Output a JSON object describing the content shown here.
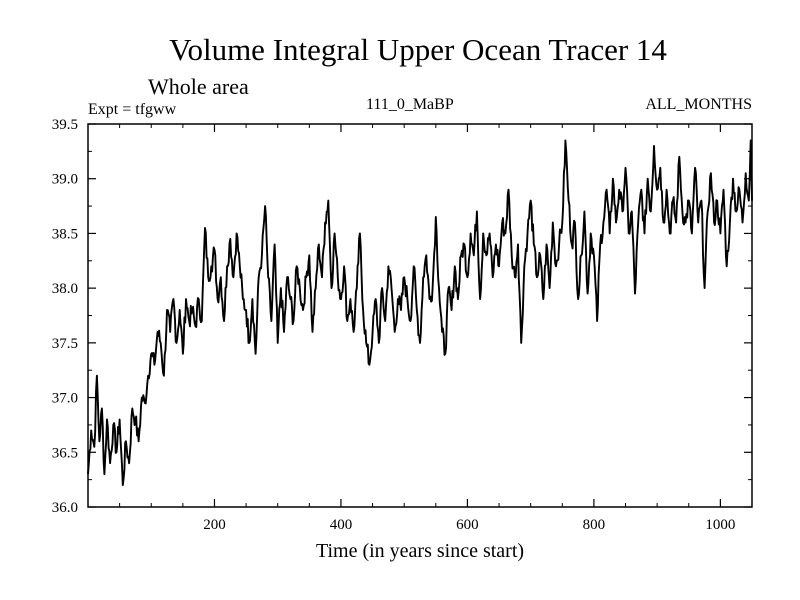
{
  "chart_data": {
    "type": "line",
    "title": "Volume Integral Upper Ocean Tracer 14",
    "subtitle": "Whole area",
    "expt_label": "Expt = tfgww",
    "run_label": "111_0_MaBP",
    "period_label": "ALL_MONTHS",
    "xlabel": "Time (in years since start)",
    "ylabel": "",
    "xlim": [
      0,
      1050
    ],
    "ylim": [
      36.0,
      39.5
    ],
    "xticks": [
      200,
      400,
      600,
      800,
      1000
    ],
    "xtick_labels": [
      "200",
      "400",
      "600",
      "800",
      "1000"
    ],
    "yticks": [
      36.0,
      36.5,
      37.0,
      37.5,
      38.0,
      38.5,
      39.0,
      39.5
    ],
    "ytick_labels": [
      "36.0",
      "36.5",
      "37.0",
      "37.5",
      "38.0",
      "38.5",
      "39.0",
      "39.5"
    ],
    "grid": false,
    "line_color": "#000000",
    "anchors": [
      [
        0,
        36.3
      ],
      [
        5,
        36.7
      ],
      [
        10,
        36.55
      ],
      [
        14,
        37.2
      ],
      [
        18,
        36.6
      ],
      [
        22,
        36.9
      ],
      [
        26,
        36.3
      ],
      [
        30,
        36.8
      ],
      [
        35,
        36.4
      ],
      [
        40,
        36.75
      ],
      [
        45,
        36.5
      ],
      [
        50,
        36.8
      ],
      [
        55,
        36.2
      ],
      [
        60,
        36.6
      ],
      [
        65,
        36.4
      ],
      [
        70,
        36.9
      ],
      [
        75,
        36.8
      ],
      [
        80,
        36.6
      ],
      [
        85,
        37.0
      ],
      [
        90,
        36.95
      ],
      [
        95,
        37.2
      ],
      [
        100,
        37.4
      ],
      [
        105,
        37.3
      ],
      [
        110,
        37.6
      ],
      [
        115,
        37.5
      ],
      [
        120,
        37.2
      ],
      [
        125,
        37.8
      ],
      [
        130,
        37.6
      ],
      [
        135,
        37.9
      ],
      [
        140,
        37.5
      ],
      [
        145,
        37.8
      ],
      [
        150,
        37.4
      ],
      [
        155,
        37.9
      ],
      [
        160,
        37.7
      ],
      [
        165,
        37.8
      ],
      [
        170,
        37.65
      ],
      [
        175,
        37.9
      ],
      [
        180,
        37.7
      ],
      [
        185,
        38.55
      ],
      [
        190,
        38.1
      ],
      [
        195,
        38.2
      ],
      [
        200,
        38.35
      ],
      [
        205,
        37.9
      ],
      [
        210,
        38.1
      ],
      [
        215,
        37.7
      ],
      [
        220,
        38.2
      ],
      [
        225,
        38.45
      ],
      [
        230,
        38.1
      ],
      [
        235,
        38.5
      ],
      [
        240,
        38.2
      ],
      [
        245,
        37.9
      ],
      [
        250,
        37.8
      ],
      [
        255,
        37.5
      ],
      [
        260,
        37.9
      ],
      [
        265,
        37.4
      ],
      [
        270,
        38.1
      ],
      [
        275,
        38.3
      ],
      [
        280,
        38.75
      ],
      [
        285,
        38.1
      ],
      [
        290,
        37.7
      ],
      [
        295,
        38.4
      ],
      [
        300,
        37.5
      ],
      [
        305,
        38.0
      ],
      [
        310,
        37.6
      ],
      [
        315,
        38.1
      ],
      [
        320,
        37.9
      ],
      [
        325,
        37.7
      ],
      [
        330,
        38.2
      ],
      [
        335,
        38.0
      ],
      [
        340,
        37.8
      ],
      [
        345,
        38.1
      ],
      [
        350,
        38.3
      ],
      [
        355,
        37.6
      ],
      [
        360,
        38.0
      ],
      [
        365,
        38.4
      ],
      [
        370,
        38.1
      ],
      [
        375,
        38.6
      ],
      [
        380,
        38.8
      ],
      [
        385,
        38.0
      ],
      [
        390,
        38.5
      ],
      [
        395,
        38.1
      ],
      [
        400,
        37.9
      ],
      [
        405,
        38.2
      ],
      [
        410,
        37.7
      ],
      [
        415,
        37.9
      ],
      [
        420,
        37.6
      ],
      [
        425,
        38.0
      ],
      [
        430,
        38.5
      ],
      [
        435,
        37.8
      ],
      [
        440,
        37.5
      ],
      [
        445,
        37.3
      ],
      [
        450,
        37.6
      ],
      [
        455,
        37.9
      ],
      [
        460,
        37.5
      ],
      [
        465,
        38.0
      ],
      [
        470,
        37.7
      ],
      [
        475,
        38.2
      ],
      [
        480,
        38.0
      ],
      [
        485,
        37.6
      ],
      [
        490,
        37.9
      ],
      [
        495,
        37.8
      ],
      [
        500,
        38.1
      ],
      [
        505,
        37.9
      ],
      [
        510,
        37.7
      ],
      [
        515,
        38.2
      ],
      [
        520,
        37.8
      ],
      [
        525,
        37.5
      ],
      [
        530,
        38.1
      ],
      [
        535,
        38.3
      ],
      [
        540,
        37.9
      ],
      [
        545,
        38.0
      ],
      [
        550,
        38.65
      ],
      [
        555,
        38.0
      ],
      [
        560,
        37.6
      ],
      [
        565,
        37.4
      ],
      [
        570,
        38.0
      ],
      [
        575,
        37.8
      ],
      [
        580,
        38.2
      ],
      [
        585,
        37.9
      ],
      [
        590,
        38.3
      ],
      [
        595,
        38.4
      ],
      [
        600,
        38.1
      ],
      [
        605,
        38.5
      ],
      [
        610,
        38.3
      ],
      [
        615,
        38.7
      ],
      [
        620,
        37.9
      ],
      [
        625,
        38.5
      ],
      [
        630,
        38.3
      ],
      [
        635,
        38.5
      ],
      [
        640,
        38.1
      ],
      [
        645,
        38.4
      ],
      [
        650,
        38.2
      ],
      [
        655,
        38.6
      ],
      [
        660,
        38.5
      ],
      [
        665,
        38.9
      ],
      [
        670,
        38.3
      ],
      [
        675,
        38.1
      ],
      [
        680,
        38.4
      ],
      [
        685,
        37.5
      ],
      [
        690,
        38.2
      ],
      [
        695,
        38.5
      ],
      [
        700,
        38.8
      ],
      [
        705,
        38.4
      ],
      [
        710,
        38.1
      ],
      [
        715,
        38.3
      ],
      [
        720,
        37.9
      ],
      [
        725,
        38.4
      ],
      [
        730,
        38.0
      ],
      [
        735,
        38.6
      ],
      [
        740,
        38.2
      ],
      [
        745,
        38.4
      ],
      [
        750,
        38.6
      ],
      [
        755,
        39.35
      ],
      [
        760,
        38.8
      ],
      [
        765,
        38.4
      ],
      [
        770,
        38.6
      ],
      [
        775,
        37.9
      ],
      [
        780,
        38.3
      ],
      [
        785,
        38.7
      ],
      [
        790,
        37.95
      ],
      [
        795,
        38.5
      ],
      [
        800,
        38.3
      ],
      [
        805,
        37.7
      ],
      [
        810,
        38.4
      ],
      [
        815,
        38.6
      ],
      [
        820,
        38.9
      ],
      [
        825,
        38.5
      ],
      [
        830,
        39.0
      ],
      [
        835,
        38.6
      ],
      [
        840,
        38.9
      ],
      [
        845,
        38.7
      ],
      [
        850,
        39.1
      ],
      [
        855,
        38.5
      ],
      [
        860,
        38.7
      ],
      [
        865,
        37.95
      ],
      [
        870,
        38.6
      ],
      [
        875,
        38.9
      ],
      [
        880,
        38.5
      ],
      [
        885,
        39.0
      ],
      [
        890,
        38.7
      ],
      [
        895,
        39.3
      ],
      [
        900,
        38.9
      ],
      [
        905,
        39.1
      ],
      [
        910,
        38.6
      ],
      [
        915,
        38.9
      ],
      [
        920,
        38.5
      ],
      [
        925,
        38.8
      ],
      [
        930,
        38.6
      ],
      [
        935,
        39.2
      ],
      [
        940,
        38.7
      ],
      [
        945,
        38.6
      ],
      [
        950,
        38.8
      ],
      [
        955,
        38.5
      ],
      [
        960,
        39.1
      ],
      [
        965,
        38.6
      ],
      [
        970,
        38.8
      ],
      [
        975,
        38.0
      ],
      [
        980,
        38.7
      ],
      [
        985,
        39.05
      ],
      [
        990,
        38.6
      ],
      [
        995,
        38.8
      ],
      [
        1000,
        38.5
      ],
      [
        1005,
        38.9
      ],
      [
        1010,
        38.2
      ],
      [
        1015,
        38.6
      ],
      [
        1020,
        39.0
      ],
      [
        1025,
        38.7
      ],
      [
        1030,
        38.9
      ],
      [
        1035,
        38.6
      ],
      [
        1040,
        39.05
      ],
      [
        1045,
        38.8
      ],
      [
        1048,
        39.35
      ],
      [
        1050,
        38.8
      ]
    ]
  }
}
